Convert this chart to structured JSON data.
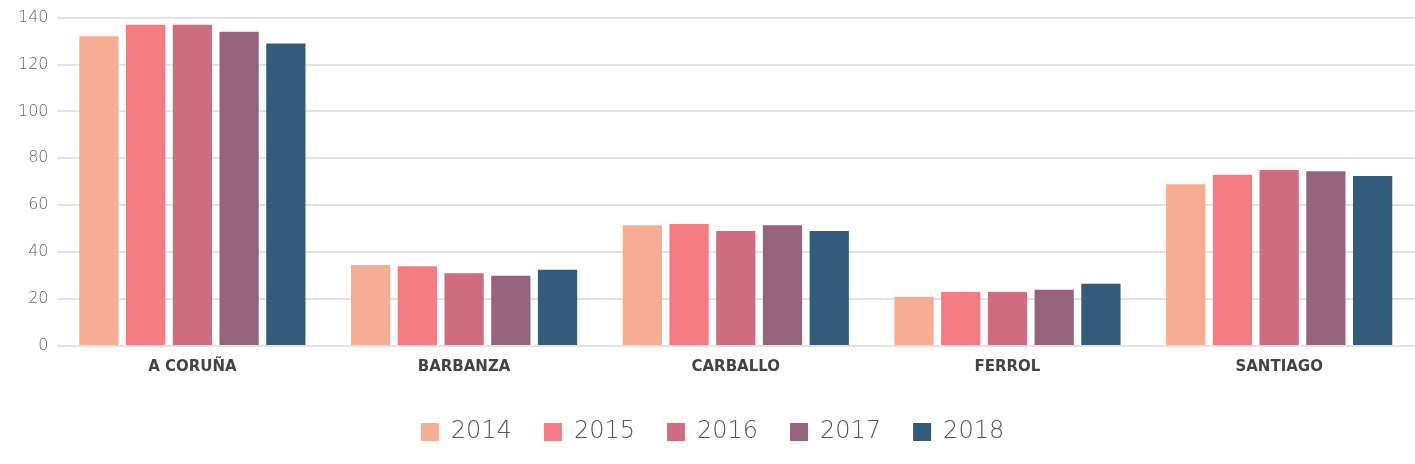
{
  "chart_data": {
    "type": "bar",
    "categories": [
      "A CORUÑA",
      "BARBANZA",
      "CARBALLO",
      "FERROL",
      "SANTIAGO"
    ],
    "series": [
      {
        "name": "2014",
        "color": "#f7ad93",
        "values": [
          132,
          34.5,
          51.5,
          21,
          69
        ]
      },
      {
        "name": "2015",
        "color": "#f47b83",
        "values": [
          137,
          34,
          52,
          23,
          73
        ]
      },
      {
        "name": "2016",
        "color": "#d06c80",
        "values": [
          137,
          31,
          49,
          23,
          75
        ]
      },
      {
        "name": "2017",
        "color": "#96637c",
        "values": [
          134,
          30,
          51.5,
          24,
          74.5
        ]
      },
      {
        "name": "2018",
        "color": "#325b7c",
        "values": [
          129,
          32.5,
          49,
          26.5,
          72.5
        ]
      }
    ],
    "ylim": [
      0,
      140
    ],
    "yticks": [
      0,
      20,
      40,
      60,
      80,
      100,
      120,
      140
    ],
    "grid": "y",
    "legend": "bottom"
  }
}
